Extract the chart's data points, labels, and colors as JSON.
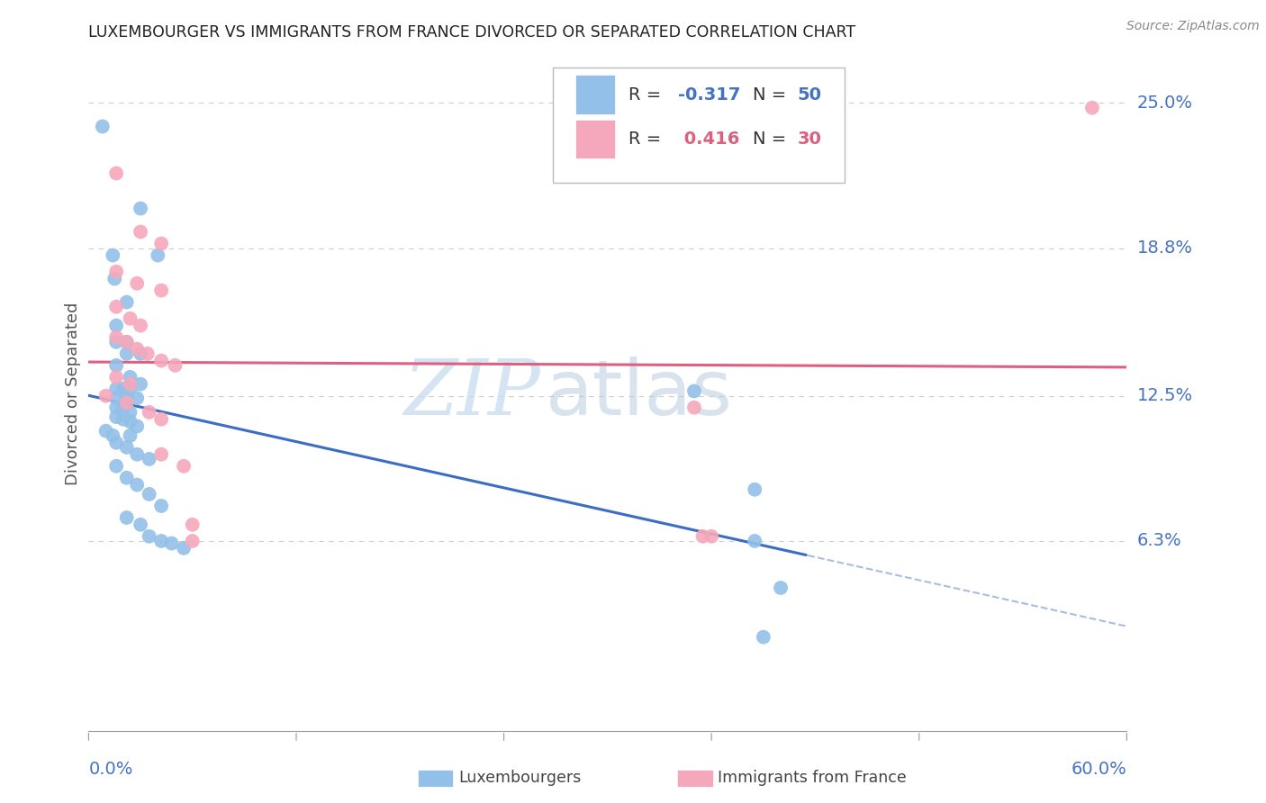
{
  "title": "LUXEMBOURGER VS IMMIGRANTS FROM FRANCE DIVORCED OR SEPARATED CORRELATION CHART",
  "source": "Source: ZipAtlas.com",
  "ylabel": "Divorced or Separated",
  "xlim": [
    0.0,
    0.6
  ],
  "ylim": [
    -0.018,
    0.27
  ],
  "ytick_vals": [
    0.0,
    0.063,
    0.125,
    0.188,
    0.25
  ],
  "ytick_labels": [
    "",
    "6.3%",
    "12.5%",
    "18.8%",
    "25.0%"
  ],
  "blue_pts": [
    [
      0.008,
      0.24
    ],
    [
      0.03,
      0.205
    ],
    [
      0.014,
      0.185
    ],
    [
      0.04,
      0.185
    ],
    [
      0.015,
      0.175
    ],
    [
      0.022,
      0.165
    ],
    [
      0.016,
      0.155
    ],
    [
      0.016,
      0.148
    ],
    [
      0.022,
      0.148
    ],
    [
      0.022,
      0.143
    ],
    [
      0.03,
      0.143
    ],
    [
      0.016,
      0.138
    ],
    [
      0.024,
      0.133
    ],
    [
      0.03,
      0.13
    ],
    [
      0.016,
      0.128
    ],
    [
      0.02,
      0.128
    ],
    [
      0.024,
      0.128
    ],
    [
      0.016,
      0.124
    ],
    [
      0.022,
      0.124
    ],
    [
      0.028,
      0.124
    ],
    [
      0.016,
      0.12
    ],
    [
      0.02,
      0.12
    ],
    [
      0.024,
      0.118
    ],
    [
      0.016,
      0.116
    ],
    [
      0.02,
      0.115
    ],
    [
      0.024,
      0.114
    ],
    [
      0.028,
      0.112
    ],
    [
      0.01,
      0.11
    ],
    [
      0.014,
      0.108
    ],
    [
      0.024,
      0.108
    ],
    [
      0.016,
      0.105
    ],
    [
      0.022,
      0.103
    ],
    [
      0.028,
      0.1
    ],
    [
      0.035,
      0.098
    ],
    [
      0.016,
      0.095
    ],
    [
      0.022,
      0.09
    ],
    [
      0.028,
      0.087
    ],
    [
      0.035,
      0.083
    ],
    [
      0.042,
      0.078
    ],
    [
      0.022,
      0.073
    ],
    [
      0.03,
      0.07
    ],
    [
      0.035,
      0.065
    ],
    [
      0.042,
      0.063
    ],
    [
      0.048,
      0.062
    ],
    [
      0.055,
      0.06
    ],
    [
      0.35,
      0.127
    ],
    [
      0.385,
      0.085
    ],
    [
      0.385,
      0.063
    ],
    [
      0.4,
      0.043
    ],
    [
      0.39,
      0.022
    ]
  ],
  "pink_pts": [
    [
      0.016,
      0.22
    ],
    [
      0.03,
      0.195
    ],
    [
      0.042,
      0.19
    ],
    [
      0.016,
      0.178
    ],
    [
      0.028,
      0.173
    ],
    [
      0.042,
      0.17
    ],
    [
      0.016,
      0.163
    ],
    [
      0.024,
      0.158
    ],
    [
      0.03,
      0.155
    ],
    [
      0.016,
      0.15
    ],
    [
      0.022,
      0.148
    ],
    [
      0.028,
      0.145
    ],
    [
      0.034,
      0.143
    ],
    [
      0.042,
      0.14
    ],
    [
      0.05,
      0.138
    ],
    [
      0.016,
      0.133
    ],
    [
      0.024,
      0.13
    ],
    [
      0.01,
      0.125
    ],
    [
      0.022,
      0.122
    ],
    [
      0.035,
      0.118
    ],
    [
      0.042,
      0.115
    ],
    [
      0.042,
      0.1
    ],
    [
      0.055,
      0.095
    ],
    [
      0.06,
      0.07
    ],
    [
      0.06,
      0.063
    ],
    [
      0.35,
      0.12
    ],
    [
      0.355,
      0.065
    ],
    [
      0.36,
      0.065
    ],
    [
      0.58,
      0.248
    ]
  ],
  "blue_color": "#92C0E8",
  "pink_color": "#F5A8BB",
  "blue_line_color": "#3B6DC4",
  "pink_line_color": "#DC6080",
  "grid_color": "#C8C8C8",
  "watermark_zip": "ZIP",
  "watermark_atlas": "atlas"
}
